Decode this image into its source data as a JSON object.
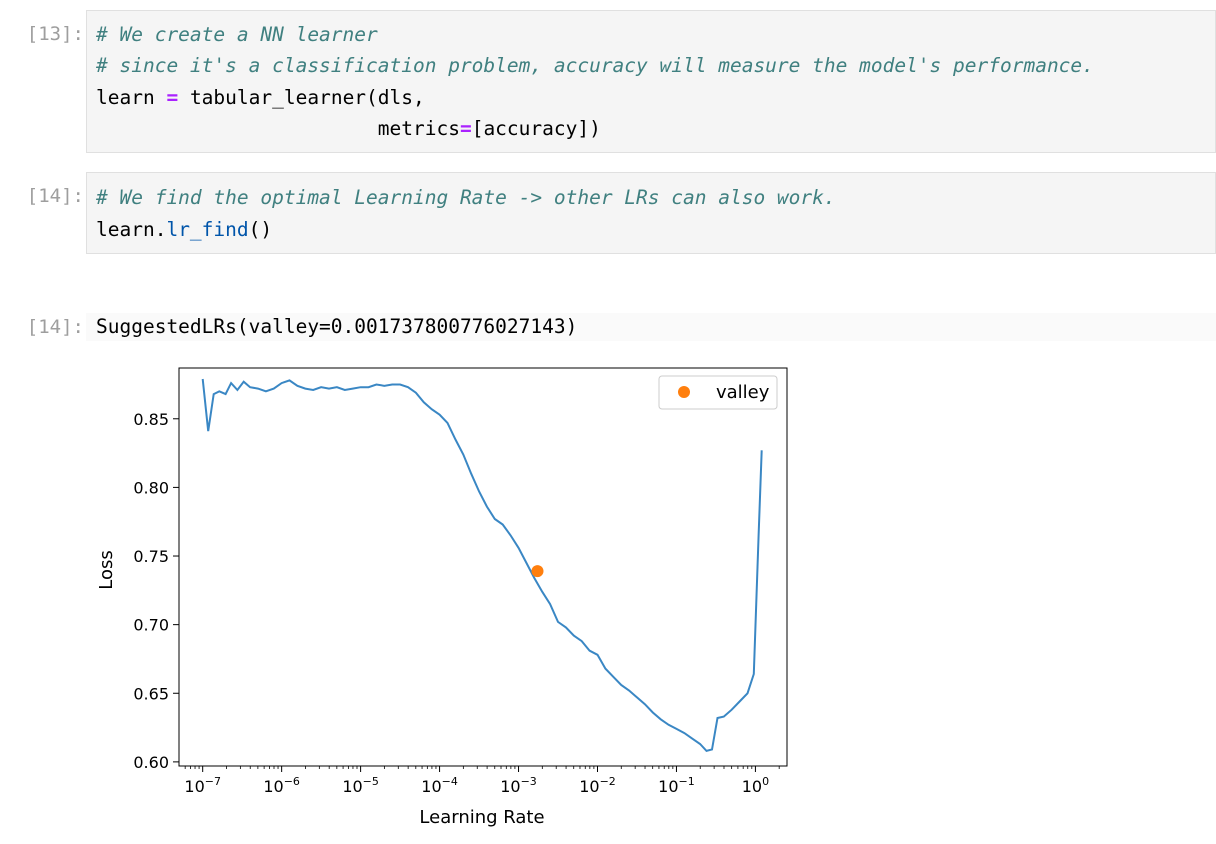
{
  "cells": [
    {
      "prompt": "[13]:",
      "lines": {
        "l1": "# We create a NN learner",
        "l2": "# since it's a classification problem, accuracy will measure the model's performance.",
        "l3a": "learn ",
        "l3op": "=",
        "l3b": " tabular_learner(dls,",
        "l4a": "                        metrics",
        "l4op": "=",
        "l4b": "[accuracy])"
      }
    },
    {
      "prompt": "[14]:",
      "lines": {
        "l1": "# We find the optimal Learning Rate -> other LRs can also work.",
        "l2a": "learn.",
        "l2fn": "lr_find",
        "l2b": "()"
      }
    }
  ],
  "output": {
    "prompt": "[14]:",
    "text": "SuggestedLRs(valley=0.001737800776027143)"
  },
  "chart_data": {
    "type": "line",
    "xlabel": "Learning Rate",
    "ylabel": "Loss",
    "x_scale": "log",
    "xlim_exp": [
      -7.3,
      0.4
    ],
    "ylim": [
      0.597,
      0.887
    ],
    "xtick_labels": [
      {
        "base": "10",
        "exp": "−7",
        "e": -7
      },
      {
        "base": "10",
        "exp": "−6",
        "e": -6
      },
      {
        "base": "10",
        "exp": "−5",
        "e": -5
      },
      {
        "base": "10",
        "exp": "−4",
        "e": -4
      },
      {
        "base": "10",
        "exp": "−3",
        "e": -3
      },
      {
        "base": "10",
        "exp": "−2",
        "e": -2
      },
      {
        "base": "10",
        "exp": "−1",
        "e": -1
      },
      {
        "base": "10",
        "exp": "0",
        "e": 0
      }
    ],
    "ytick_labels": [
      "0.60",
      "0.65",
      "0.70",
      "0.75",
      "0.80",
      "0.85"
    ],
    "yticks": [
      0.6,
      0.65,
      0.7,
      0.75,
      0.8,
      0.85
    ],
    "series": [
      {
        "color": "#3a87c4",
        "points": [
          [
            -7.0,
            0.879
          ],
          [
            -6.93,
            0.841
          ],
          [
            -6.86,
            0.868
          ],
          [
            -6.79,
            0.87
          ],
          [
            -6.71,
            0.868
          ],
          [
            -6.64,
            0.876
          ],
          [
            -6.56,
            0.871
          ],
          [
            -6.48,
            0.877
          ],
          [
            -6.4,
            0.873
          ],
          [
            -6.3,
            0.872
          ],
          [
            -6.2,
            0.87
          ],
          [
            -6.1,
            0.872
          ],
          [
            -6.0,
            0.876
          ],
          [
            -5.9,
            0.878
          ],
          [
            -5.8,
            0.874
          ],
          [
            -5.7,
            0.872
          ],
          [
            -5.6,
            0.871
          ],
          [
            -5.5,
            0.873
          ],
          [
            -5.4,
            0.872
          ],
          [
            -5.3,
            0.873
          ],
          [
            -5.2,
            0.871
          ],
          [
            -5.1,
            0.872
          ],
          [
            -5.0,
            0.873
          ],
          [
            -4.9,
            0.873
          ],
          [
            -4.8,
            0.875
          ],
          [
            -4.7,
            0.874
          ],
          [
            -4.6,
            0.875
          ],
          [
            -4.5,
            0.875
          ],
          [
            -4.4,
            0.873
          ],
          [
            -4.3,
            0.869
          ],
          [
            -4.2,
            0.862
          ],
          [
            -4.1,
            0.857
          ],
          [
            -4.0,
            0.853
          ],
          [
            -3.9,
            0.847
          ],
          [
            -3.8,
            0.835
          ],
          [
            -3.7,
            0.824
          ],
          [
            -3.6,
            0.81
          ],
          [
            -3.5,
            0.797
          ],
          [
            -3.4,
            0.786
          ],
          [
            -3.3,
            0.777
          ],
          [
            -3.2,
            0.773
          ],
          [
            -3.1,
            0.765
          ],
          [
            -3.0,
            0.756
          ],
          [
            -2.9,
            0.745
          ],
          [
            -2.8,
            0.734
          ],
          [
            -2.7,
            0.724
          ],
          [
            -2.6,
            0.715
          ],
          [
            -2.5,
            0.702
          ],
          [
            -2.4,
            0.698
          ],
          [
            -2.3,
            0.692
          ],
          [
            -2.2,
            0.688
          ],
          [
            -2.1,
            0.681
          ],
          [
            -2.0,
            0.678
          ],
          [
            -1.9,
            0.668
          ],
          [
            -1.8,
            0.662
          ],
          [
            -1.7,
            0.656
          ],
          [
            -1.6,
            0.652
          ],
          [
            -1.5,
            0.647
          ],
          [
            -1.4,
            0.642
          ],
          [
            -1.3,
            0.636
          ],
          [
            -1.2,
            0.631
          ],
          [
            -1.1,
            0.627
          ],
          [
            -1.0,
            0.624
          ],
          [
            -0.9,
            0.621
          ],
          [
            -0.8,
            0.617
          ],
          [
            -0.7,
            0.613
          ],
          [
            -0.62,
            0.608
          ],
          [
            -0.55,
            0.609
          ],
          [
            -0.48,
            0.632
          ],
          [
            -0.4,
            0.633
          ],
          [
            -0.3,
            0.638
          ],
          [
            -0.2,
            0.644
          ],
          [
            -0.1,
            0.65
          ],
          [
            -0.02,
            0.664
          ],
          [
            0.04,
            0.765
          ],
          [
            0.08,
            0.827
          ]
        ]
      }
    ],
    "valley": {
      "label": "valley",
      "x_exp": -2.76,
      "y": 0.739,
      "color": "#ff7f0e"
    },
    "legend": {
      "entry": "valley",
      "placement": "top-right"
    }
  }
}
